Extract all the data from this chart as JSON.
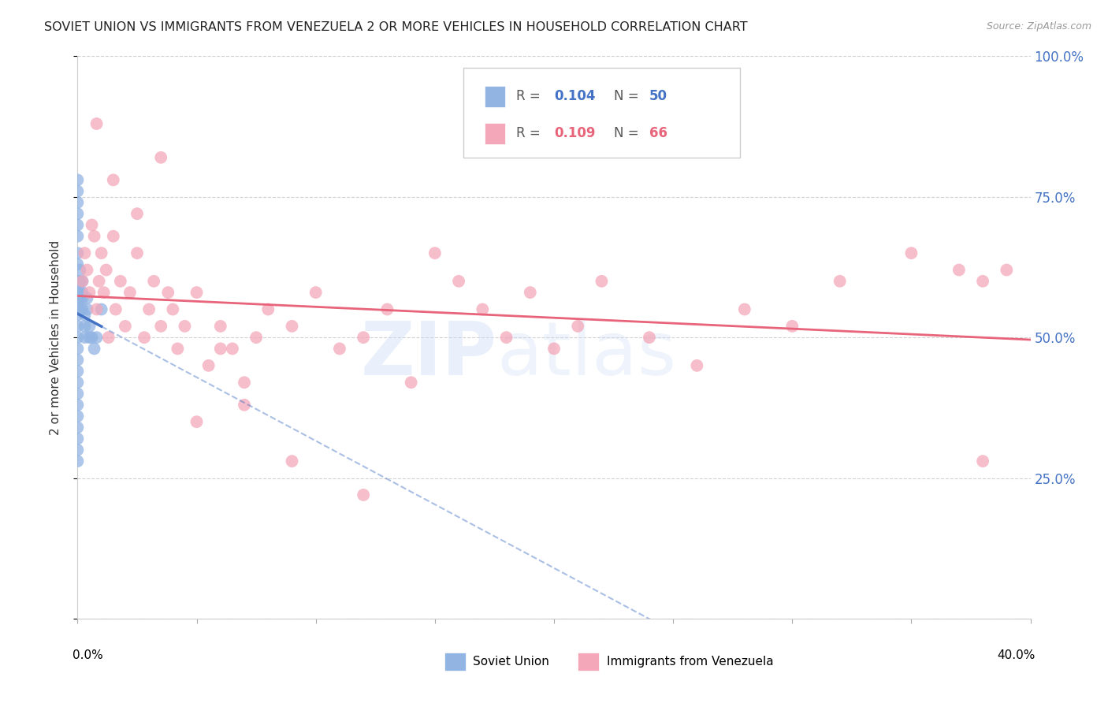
{
  "title": "SOVIET UNION VS IMMIGRANTS FROM VENEZUELA 2 OR MORE VEHICLES IN HOUSEHOLD CORRELATION CHART",
  "source": "Source: ZipAtlas.com",
  "ylabel": "2 or more Vehicles in Household",
  "blue_color": "#92b4e3",
  "pink_color": "#f4a7b9",
  "blue_line_color": "#4472c4",
  "pink_line_color": "#e8647a",
  "watermark_zip": "ZIP",
  "watermark_atlas": "atlas",
  "legend_r1": "R = 0.104",
  "legend_n1": "N = 50",
  "legend_r2": "R = 0.109",
  "legend_n2": "N = 66",
  "soviet_x": [
    0.0,
    0.0,
    0.0,
    0.0,
    0.0,
    0.0,
    0.0,
    0.0,
    0.0,
    0.0,
    0.0,
    0.0,
    0.0,
    0.0,
    0.0,
    0.0,
    0.0,
    0.0,
    0.0,
    0.0,
    0.0,
    0.0,
    0.0,
    0.0,
    0.0,
    0.0,
    0.0,
    0.0,
    0.0,
    0.0,
    0.001,
    0.001,
    0.001,
    0.001,
    0.001,
    0.002,
    0.002,
    0.002,
    0.002,
    0.003,
    0.003,
    0.003,
    0.004,
    0.004,
    0.005,
    0.005,
    0.006,
    0.007,
    0.008,
    0.01
  ],
  "soviet_y": [
    0.55,
    0.6,
    0.63,
    0.65,
    0.68,
    0.7,
    0.72,
    0.74,
    0.76,
    0.78,
    0.55,
    0.57,
    0.58,
    0.59,
    0.6,
    0.5,
    0.52,
    0.54,
    0.56,
    0.48,
    0.46,
    0.44,
    0.42,
    0.4,
    0.38,
    0.36,
    0.34,
    0.32,
    0.3,
    0.28,
    0.55,
    0.57,
    0.58,
    0.6,
    0.62,
    0.55,
    0.57,
    0.58,
    0.6,
    0.5,
    0.52,
    0.54,
    0.55,
    0.57,
    0.5,
    0.52,
    0.5,
    0.48,
    0.5,
    0.55
  ],
  "venezuela_x": [
    0.002,
    0.003,
    0.004,
    0.005,
    0.006,
    0.007,
    0.008,
    0.009,
    0.01,
    0.011,
    0.012,
    0.013,
    0.015,
    0.016,
    0.018,
    0.02,
    0.022,
    0.025,
    0.028,
    0.03,
    0.032,
    0.035,
    0.038,
    0.04,
    0.042,
    0.045,
    0.05,
    0.055,
    0.06,
    0.065,
    0.07,
    0.075,
    0.08,
    0.09,
    0.1,
    0.11,
    0.12,
    0.13,
    0.14,
    0.15,
    0.16,
    0.17,
    0.18,
    0.19,
    0.2,
    0.21,
    0.22,
    0.24,
    0.26,
    0.28,
    0.3,
    0.32,
    0.35,
    0.37,
    0.38,
    0.39,
    0.05,
    0.07,
    0.09,
    0.12,
    0.008,
    0.015,
    0.025,
    0.035,
    0.06,
    0.38
  ],
  "venezuela_y": [
    0.6,
    0.65,
    0.62,
    0.58,
    0.7,
    0.68,
    0.55,
    0.6,
    0.65,
    0.58,
    0.62,
    0.5,
    0.68,
    0.55,
    0.6,
    0.52,
    0.58,
    0.65,
    0.5,
    0.55,
    0.6,
    0.52,
    0.58,
    0.55,
    0.48,
    0.52,
    0.58,
    0.45,
    0.52,
    0.48,
    0.42,
    0.5,
    0.55,
    0.52,
    0.58,
    0.48,
    0.5,
    0.55,
    0.42,
    0.65,
    0.6,
    0.55,
    0.5,
    0.58,
    0.48,
    0.52,
    0.6,
    0.5,
    0.45,
    0.55,
    0.52,
    0.6,
    0.65,
    0.62,
    0.6,
    0.62,
    0.35,
    0.38,
    0.28,
    0.22,
    0.88,
    0.78,
    0.72,
    0.82,
    0.48,
    0.28
  ],
  "xlim": [
    0,
    0.4
  ],
  "ylim": [
    0,
    1.0
  ],
  "ytick_positions": [
    0.0,
    0.25,
    0.5,
    0.75,
    1.0
  ],
  "ytick_labels": [
    "",
    "25.0%",
    "50.0%",
    "75.0%",
    "100.0%"
  ]
}
